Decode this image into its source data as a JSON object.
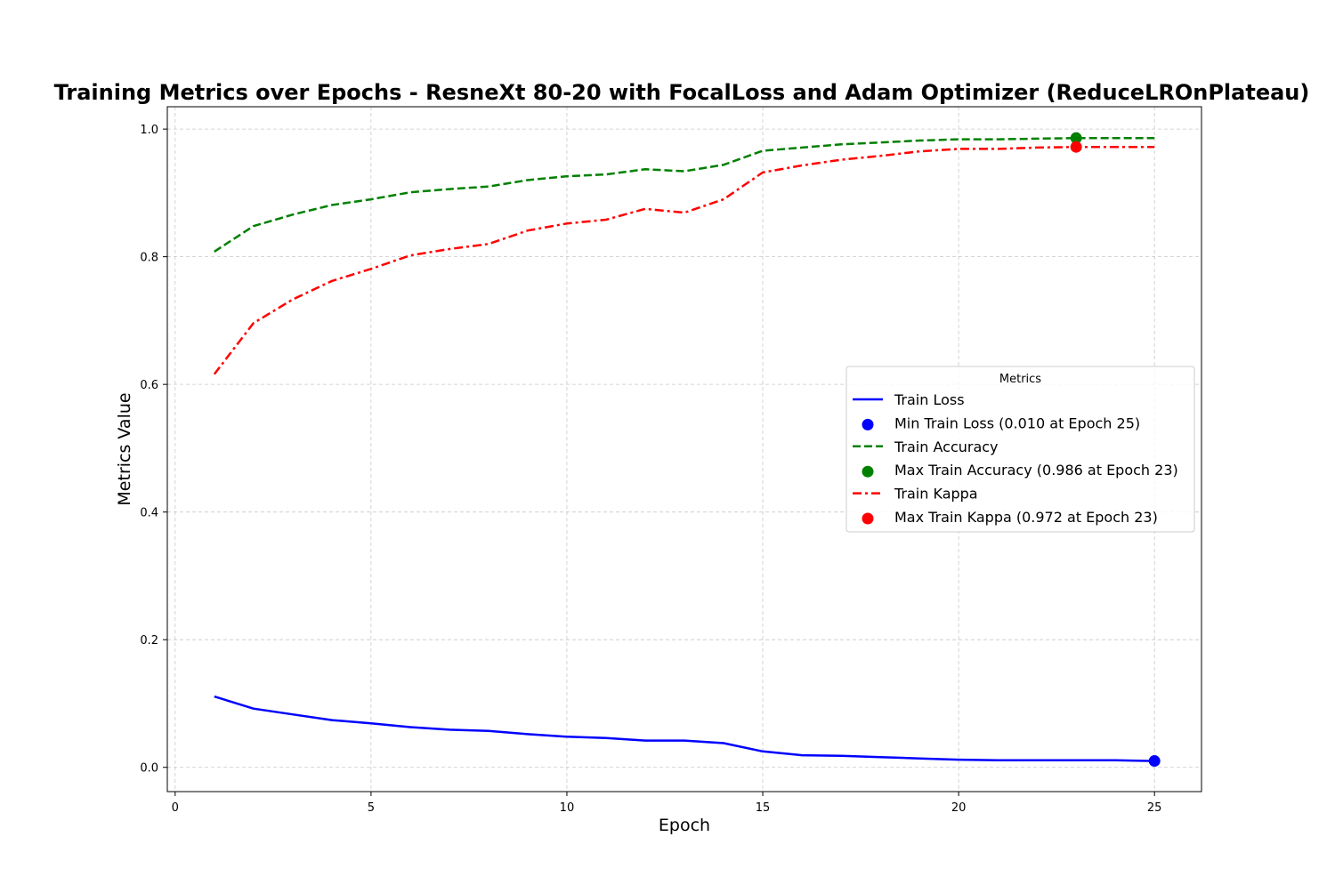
{
  "chart_data": {
    "type": "line",
    "title": "Training Metrics over Epochs - ResneXt 80-20 with FocalLoss and Adam Optimizer (ReduceLROnPlateau)",
    "xlabel": "Epoch",
    "ylabel": "Metrics Value",
    "xlim": [
      -0.2,
      26.2
    ],
    "ylim": [
      -0.038,
      1.035
    ],
    "xticks": [
      0,
      5,
      10,
      15,
      20,
      25
    ],
    "yticks": [
      0.0,
      0.2,
      0.4,
      0.6,
      0.8,
      1.0
    ],
    "xtick_labels": [
      "0",
      "5",
      "10",
      "15",
      "20",
      "25"
    ],
    "ytick_labels": [
      "0.0",
      "0.2",
      "0.4",
      "0.6",
      "0.8",
      "1.0"
    ],
    "grid": true,
    "legend_position": "center-right",
    "legend_title": "Metrics",
    "x": [
      1,
      2,
      3,
      4,
      5,
      6,
      7,
      8,
      9,
      10,
      11,
      12,
      13,
      14,
      15,
      16,
      17,
      18,
      19,
      20,
      21,
      22,
      23,
      24,
      25
    ],
    "series": [
      {
        "name": "Train Loss",
        "color": "#0000ff",
        "style": "solid",
        "values": [
          0.111,
          0.092,
          0.083,
          0.074,
          0.069,
          0.063,
          0.059,
          0.057,
          0.052,
          0.048,
          0.046,
          0.042,
          0.042,
          0.038,
          0.025,
          0.019,
          0.018,
          0.016,
          0.014,
          0.012,
          0.011,
          0.011,
          0.011,
          0.011,
          0.01
        ]
      },
      {
        "name": "Train Accuracy",
        "color": "#008000",
        "style": "dashed",
        "values": [
          0.808,
          0.848,
          0.866,
          0.881,
          0.89,
          0.901,
          0.906,
          0.91,
          0.92,
          0.926,
          0.929,
          0.937,
          0.934,
          0.944,
          0.966,
          0.971,
          0.976,
          0.979,
          0.982,
          0.984,
          0.984,
          0.985,
          0.986,
          0.986,
          0.986
        ]
      },
      {
        "name": "Train Kappa",
        "color": "#ff0000",
        "style": "dashdot",
        "values": [
          0.616,
          0.696,
          0.733,
          0.762,
          0.781,
          0.802,
          0.812,
          0.82,
          0.841,
          0.852,
          0.858,
          0.875,
          0.869,
          0.89,
          0.932,
          0.943,
          0.952,
          0.958,
          0.965,
          0.969,
          0.969,
          0.971,
          0.972,
          0.972,
          0.972
        ]
      }
    ],
    "markers": [
      {
        "label": "Min Train Loss (0.010 at Epoch 25)",
        "x": 25,
        "y": 0.01,
        "color": "#0000ff"
      },
      {
        "label": "Max Train Accuracy (0.986 at Epoch 23)",
        "x": 23,
        "y": 0.986,
        "color": "#008000"
      },
      {
        "label": "Max Train Kappa (0.972 at Epoch 23)",
        "x": 23,
        "y": 0.972,
        "color": "#ff0000"
      }
    ],
    "legend_entries": [
      {
        "kind": "line",
        "ref": "series.0",
        "label": "Train Loss"
      },
      {
        "kind": "marker",
        "ref": "markers.0",
        "label": "Min Train Loss (0.010 at Epoch 25)"
      },
      {
        "kind": "line",
        "ref": "series.1",
        "label": "Train Accuracy"
      },
      {
        "kind": "marker",
        "ref": "markers.1",
        "label": "Max Train Accuracy (0.986 at Epoch 23)"
      },
      {
        "kind": "line",
        "ref": "series.2",
        "label": "Train Kappa"
      },
      {
        "kind": "marker",
        "ref": "markers.2",
        "label": "Max Train Kappa (0.972 at Epoch 23)"
      }
    ]
  }
}
